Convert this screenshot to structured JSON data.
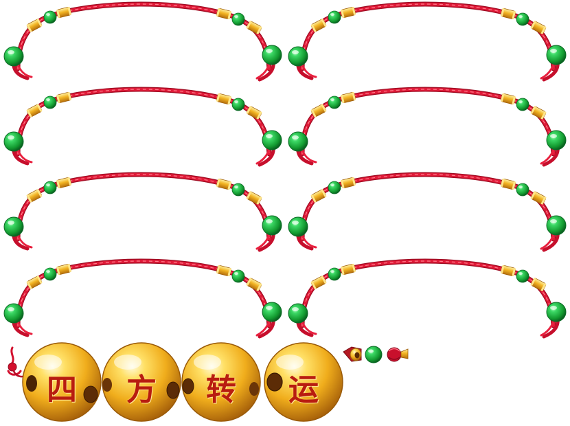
{
  "sheet": {
    "background": "#ffffff",
    "bracelet_count": 8,
    "colors": {
      "cord": "#d3102e",
      "cord_highlight": "#ff5a6e",
      "jade": "#1fb84a",
      "jade_dark": "#0c7a2c",
      "gold": "#f2b423",
      "gold_dark": "#c07a10",
      "char_red": "#b81c10"
    }
  },
  "gold_beads": [
    {
      "char": "四"
    },
    {
      "char": "方"
    },
    {
      "char": "转"
    },
    {
      "char": "运"
    }
  ],
  "loose_parts": [
    "red-knot-icon",
    "gold-cap-bead-icon",
    "jade-bead-icon",
    "red-tassel-knot-icon"
  ]
}
